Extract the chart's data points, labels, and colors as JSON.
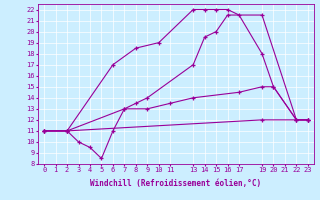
{
  "xlabel": "Windchill (Refroidissement éolien,°C)",
  "background_color": "#cceeff",
  "line_color": "#990099",
  "xlim": [
    -0.5,
    23.5
  ],
  "ylim": [
    8,
    22.5
  ],
  "xticks": [
    0,
    1,
    2,
    3,
    4,
    5,
    6,
    7,
    8,
    9,
    10,
    11,
    13,
    14,
    15,
    16,
    17,
    19,
    20,
    21,
    22,
    23
  ],
  "xtick_labels": [
    "0",
    "1",
    "2",
    "3",
    "4",
    "5",
    "6",
    "7",
    "8",
    "9",
    "10",
    "11",
    "13",
    "14",
    "15",
    "16",
    "17",
    "19",
    "20",
    "21",
    "22",
    "23"
  ],
  "yticks": [
    8,
    9,
    10,
    11,
    12,
    13,
    14,
    15,
    16,
    17,
    18,
    19,
    20,
    21,
    22
  ],
  "series": [
    {
      "x": [
        0,
        2,
        6,
        8,
        10,
        13,
        14,
        15,
        16,
        17,
        19,
        20,
        22,
        23
      ],
      "y": [
        11,
        11,
        17,
        18.5,
        19,
        22,
        22,
        22,
        22,
        21.5,
        18,
        15,
        12,
        12
      ]
    },
    {
      "x": [
        0,
        2,
        3,
        4,
        5,
        6,
        7,
        8,
        9,
        13,
        14,
        15,
        16,
        19,
        22,
        23
      ],
      "y": [
        11,
        11,
        10,
        9.5,
        8.5,
        11,
        13,
        13.5,
        14,
        17,
        19.5,
        20,
        21.5,
        21.5,
        12,
        12
      ]
    },
    {
      "x": [
        0,
        2,
        19,
        23
      ],
      "y": [
        11,
        11,
        12,
        12
      ]
    },
    {
      "x": [
        0,
        2,
        7,
        9,
        11,
        13,
        17,
        19,
        20,
        22,
        23
      ],
      "y": [
        11,
        11,
        13,
        13,
        13.5,
        14,
        14.5,
        15,
        15,
        12,
        12
      ]
    }
  ]
}
